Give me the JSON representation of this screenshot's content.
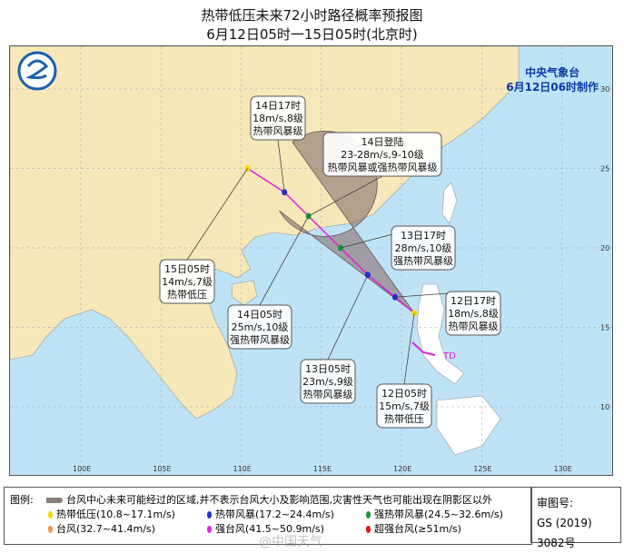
{
  "title": "热带低压未来72小时路径概率预报图",
  "subtitle": "6月12日05时一15日05时(北京时)",
  "agency": {
    "name": "中央气象台",
    "made": "6月12日06时制作"
  },
  "colors": {
    "sea": "#bfe3f6",
    "land": "#f6e8b8",
    "cone": "#8a6f6f",
    "track": "#e020e0"
  },
  "map": {
    "lon_labels": [
      "100E",
      "105E",
      "110E",
      "115E",
      "120E",
      "125E",
      "130E"
    ],
    "lat_labels": [
      "30",
      "25",
      "20",
      "15",
      "10"
    ],
    "storm_label": "TD",
    "forecast_points": [
      {
        "time": "12日05时",
        "wind": "15m/s,7级",
        "level": "热带低压",
        "lon": 120.8,
        "lat": 15.9,
        "color": "#f5d800"
      },
      {
        "time": "12日17时",
        "wind": "18m/s,8级",
        "level": "热带风暴级",
        "lon": 119.6,
        "lat": 16.9,
        "color": "#2030d0"
      },
      {
        "time": "13日05时",
        "wind": "23m/s,9级",
        "level": "热带风暴级",
        "lon": 117.9,
        "lat": 18.3,
        "color": "#2030d0"
      },
      {
        "time": "13日17时",
        "wind": "28m/s,10级",
        "level": "强热带风暴级",
        "lon": 116.2,
        "lat": 20.0,
        "color": "#1a9a30"
      },
      {
        "time": "14日05时",
        "wind": "25m/s,10级",
        "level": "强热带风暴级",
        "lon": 114.2,
        "lat": 22.0,
        "color": "#1a9a30"
      },
      {
        "time": "14日17时",
        "wind": "18m/s,8级",
        "level": "热带风暴级",
        "lon": 112.7,
        "lat": 23.5,
        "color": "#2030d0"
      },
      {
        "time": "15日05时",
        "wind": "14m/s,7级",
        "level": "热带低压",
        "lon": 110.4,
        "lat": 25.0,
        "color": "#f5d800"
      }
    ],
    "landfall": {
      "time": "14日登陆",
      "wind": "23-28m/s,9-10级",
      "level": "热带风暴或强热带风暴级"
    }
  },
  "legend": {
    "label": "图例:",
    "cone_text": "台风中心未来可能经过的区域,并不表示台风大小及影响范围,灾害性天气也可能出现在阴影区以外",
    "items": [
      {
        "text": "热带低压(10.8~17.1m/s)",
        "color": "#f5d800"
      },
      {
        "text": "热带风暴(17.2~24.4m/s)",
        "color": "#2030d0"
      },
      {
        "text": "强热带风暴(24.5~32.6m/s)",
        "color": "#1a9a30"
      },
      {
        "text": "台风(32.7~41.4m/s)",
        "color": "#f59040"
      },
      {
        "text": "强台风(41.5~50.9m/s)",
        "color": "#e020e0"
      },
      {
        "text": "超强台风(≥51m/s)",
        "color": "#e01010"
      }
    ]
  },
  "approval": {
    "label": "审图号:",
    "number": "GS (2019) 3082号"
  },
  "watermark": "@中国天气"
}
